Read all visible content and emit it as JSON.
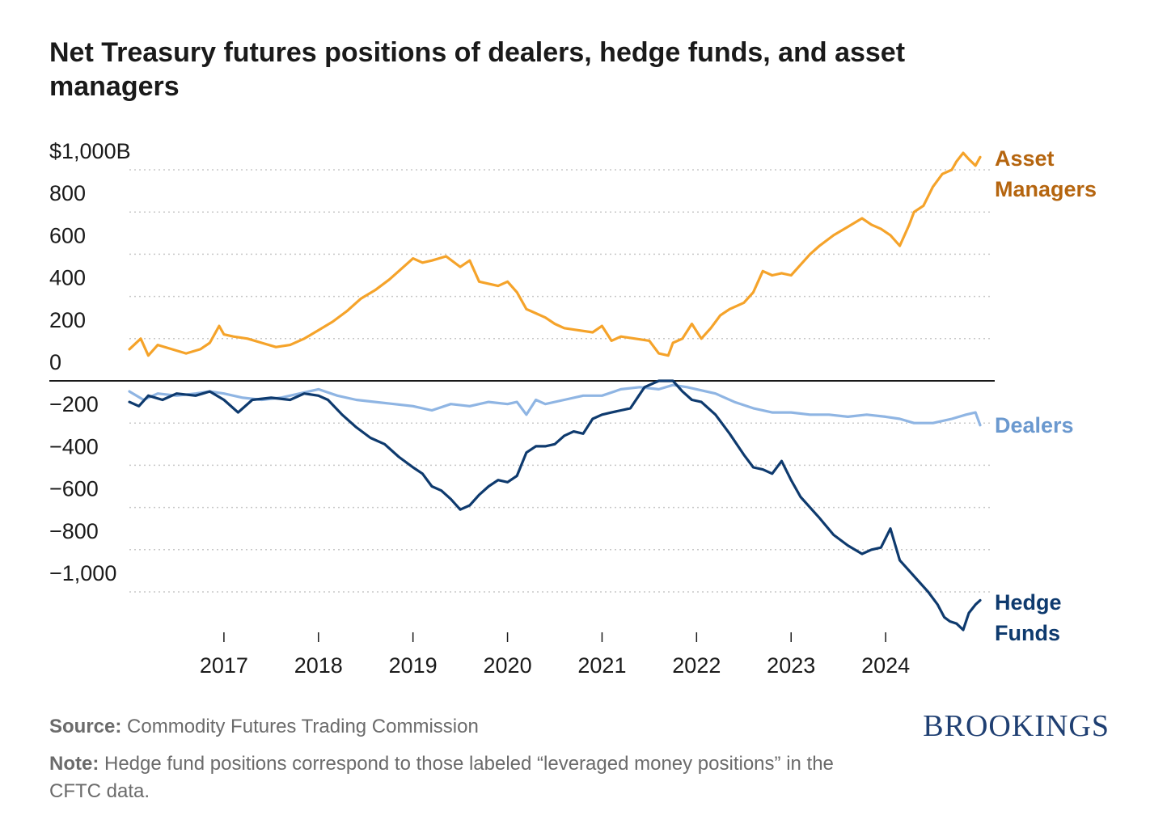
{
  "chart": {
    "title": "Net Treasury futures positions of dealers, hedge funds, and asset managers"
  },
  "chart_data": {
    "type": "line",
    "title": "Net Treasury futures positions of dealers, hedge funds, and asset managers",
    "xlabel": "",
    "ylabel": "",
    "xlim": [
      2016.0,
      2025.0
    ],
    "ylim": [
      -1200,
      1100
    ],
    "x_ticks": [
      "2017",
      "2018",
      "2019",
      "2020",
      "2021",
      "2022",
      "2023",
      "2024"
    ],
    "y_ticks": [
      {
        "value": 1000,
        "label": "$1,000B"
      },
      {
        "value": 800,
        "label": "800"
      },
      {
        "value": 600,
        "label": "600"
      },
      {
        "value": 400,
        "label": "400"
      },
      {
        "value": 200,
        "label": "200"
      },
      {
        "value": 0,
        "label": "0"
      },
      {
        "value": -200,
        "label": "−200"
      },
      {
        "value": -400,
        "label": "−400"
      },
      {
        "value": -600,
        "label": "−600"
      },
      {
        "value": -800,
        "label": "−800"
      },
      {
        "value": -1000,
        "label": "−1,000"
      }
    ],
    "grid": true,
    "legend": "direct labels at right end of lines",
    "series": [
      {
        "name": "Asset Managers",
        "label_lines": [
          "Asset",
          "Managers"
        ],
        "color": "#f5a32a",
        "label_color": "#b5650f",
        "x": [
          2016.0,
          2016.12,
          2016.2,
          2016.3,
          2016.45,
          2016.6,
          2016.75,
          2016.85,
          2016.95,
          2017.0,
          2017.1,
          2017.25,
          2017.4,
          2017.55,
          2017.7,
          2017.85,
          2018.0,
          2018.15,
          2018.3,
          2018.45,
          2018.6,
          2018.75,
          2018.9,
          2019.0,
          2019.1,
          2019.2,
          2019.35,
          2019.5,
          2019.6,
          2019.7,
          2019.8,
          2019.9,
          2020.0,
          2020.1,
          2020.2,
          2020.25,
          2020.4,
          2020.5,
          2020.6,
          2020.75,
          2020.9,
          2021.0,
          2021.1,
          2021.2,
          2021.35,
          2021.5,
          2021.6,
          2021.7,
          2021.75,
          2021.85,
          2021.95,
          2022.05,
          2022.15,
          2022.25,
          2022.35,
          2022.5,
          2022.6,
          2022.7,
          2022.8,
          2022.9,
          2023.0,
          2023.1,
          2023.2,
          2023.3,
          2023.45,
          2023.6,
          2023.75,
          2023.85,
          2023.95,
          2024.05,
          2024.15,
          2024.25,
          2024.3,
          2024.4,
          2024.5,
          2024.6,
          2024.7,
          2024.75,
          2024.82,
          2024.88,
          2024.95,
          2025.0
        ],
        "y": [
          150,
          200,
          120,
          170,
          150,
          130,
          150,
          180,
          260,
          220,
          210,
          200,
          180,
          160,
          170,
          200,
          240,
          280,
          330,
          390,
          430,
          480,
          540,
          580,
          560,
          570,
          590,
          540,
          570,
          470,
          460,
          450,
          470,
          420,
          340,
          330,
          300,
          270,
          250,
          240,
          230,
          260,
          190,
          210,
          200,
          190,
          130,
          120,
          180,
          200,
          270,
          200,
          250,
          310,
          340,
          370,
          420,
          520,
          500,
          510,
          500,
          550,
          600,
          640,
          690,
          730,
          770,
          740,
          720,
          690,
          640,
          740,
          800,
          830,
          920,
          980,
          1000,
          1040,
          1080,
          1050,
          1020,
          1060
        ]
      },
      {
        "name": "Dealers",
        "label_lines": [
          "Dealers"
        ],
        "color": "#8fb5e3",
        "label_color": "#6b99cf",
        "x": [
          2016.0,
          2016.15,
          2016.3,
          2016.5,
          2016.7,
          2016.85,
          2017.0,
          2017.2,
          2017.4,
          2017.6,
          2017.8,
          2018.0,
          2018.2,
          2018.4,
          2018.6,
          2018.8,
          2019.0,
          2019.2,
          2019.4,
          2019.6,
          2019.8,
          2020.0,
          2020.1,
          2020.2,
          2020.3,
          2020.4,
          2020.6,
          2020.8,
          2021.0,
          2021.2,
          2021.4,
          2021.6,
          2021.75,
          2021.9,
          2022.0,
          2022.2,
          2022.4,
          2022.6,
          2022.8,
          2023.0,
          2023.2,
          2023.4,
          2023.6,
          2023.8,
          2024.0,
          2024.15,
          2024.3,
          2024.5,
          2024.7,
          2024.85,
          2024.95,
          2025.0
        ],
        "y": [
          -50,
          -90,
          -60,
          -70,
          -60,
          -50,
          -60,
          -80,
          -90,
          -80,
          -60,
          -40,
          -70,
          -90,
          -100,
          -110,
          -120,
          -140,
          -110,
          -120,
          -100,
          -110,
          -100,
          -160,
          -90,
          -110,
          -90,
          -70,
          -70,
          -40,
          -30,
          -40,
          -20,
          -30,
          -40,
          -60,
          -100,
          -130,
          -150,
          -150,
          -160,
          -160,
          -170,
          -160,
          -170,
          -180,
          -200,
          -200,
          -180,
          -160,
          -150,
          -210
        ]
      },
      {
        "name": "Hedge Funds",
        "label_lines": [
          "Hedge",
          "Funds"
        ],
        "color": "#0e3a6e",
        "label_color": "#0e3a6e",
        "x": [
          2016.0,
          2016.1,
          2016.2,
          2016.35,
          2016.5,
          2016.7,
          2016.85,
          2017.0,
          2017.15,
          2017.3,
          2017.5,
          2017.7,
          2017.85,
          2018.0,
          2018.1,
          2018.25,
          2018.4,
          2018.55,
          2018.7,
          2018.85,
          2019.0,
          2019.1,
          2019.2,
          2019.3,
          2019.4,
          2019.5,
          2019.6,
          2019.7,
          2019.8,
          2019.9,
          2020.0,
          2020.1,
          2020.2,
          2020.3,
          2020.4,
          2020.5,
          2020.6,
          2020.7,
          2020.8,
          2020.9,
          2021.0,
          2021.1,
          2021.2,
          2021.3,
          2021.45,
          2021.6,
          2021.75,
          2021.85,
          2021.95,
          2022.05,
          2022.2,
          2022.35,
          2022.5,
          2022.6,
          2022.7,
          2022.8,
          2022.9,
          2023.0,
          2023.1,
          2023.2,
          2023.3,
          2023.45,
          2023.6,
          2023.75,
          2023.85,
          2023.95,
          2024.05,
          2024.15,
          2024.25,
          2024.35,
          2024.45,
          2024.55,
          2024.62,
          2024.68,
          2024.75,
          2024.82,
          2024.88,
          2024.95,
          2025.0
        ],
        "y": [
          -100,
          -120,
          -70,
          -90,
          -60,
          -70,
          -50,
          -90,
          -150,
          -90,
          -80,
          -90,
          -60,
          -70,
          -90,
          -160,
          -220,
          -270,
          -300,
          -360,
          -410,
          -440,
          -500,
          -520,
          -560,
          -610,
          -590,
          -540,
          -500,
          -470,
          -480,
          -450,
          -340,
          -310,
          -310,
          -300,
          -260,
          -240,
          -250,
          -180,
          -160,
          -150,
          -140,
          -130,
          -30,
          0,
          0,
          -50,
          -90,
          -100,
          -160,
          -250,
          -350,
          -410,
          -420,
          -440,
          -380,
          -470,
          -550,
          -600,
          -650,
          -730,
          -780,
          -820,
          -800,
          -790,
          -700,
          -850,
          -900,
          -950,
          -1000,
          -1060,
          -1120,
          -1140,
          -1150,
          -1180,
          -1100,
          -1060,
          -1040
        ]
      }
    ]
  },
  "footer": {
    "source_label": "Source:",
    "source_text": "Commodity Futures Trading Commission",
    "note_label": "Note:",
    "note_text": "Hedge fund positions correspond to those labeled “leveraged money positions” in the CFTC data."
  },
  "brand": {
    "logo_text": "BROOKINGS",
    "color": "#1f3f72"
  }
}
